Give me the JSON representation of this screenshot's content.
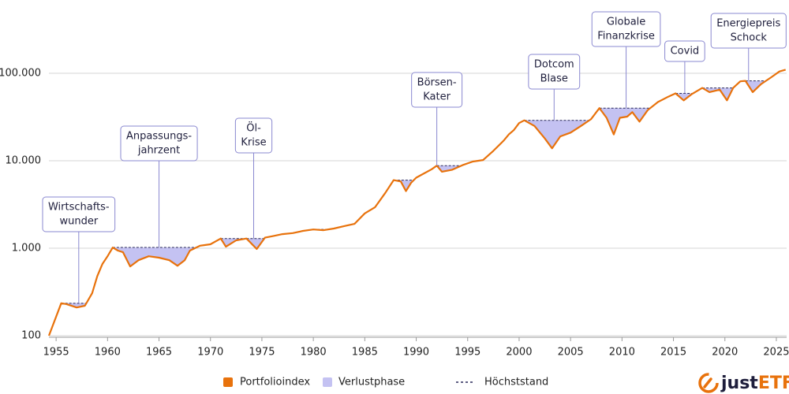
{
  "chart_data": {
    "type": "line",
    "log_scale": true,
    "grid": true,
    "xlim": [
      1954.3,
      2026
    ],
    "ylim": [
      100,
      560000
    ],
    "xticks": [
      1955,
      1960,
      1965,
      1970,
      1975,
      1980,
      1985,
      1990,
      1995,
      2000,
      2005,
      2010,
      2015,
      2020,
      2025
    ],
    "yticks": [
      100,
      {
        "value": 1000,
        "label": "1.000"
      },
      {
        "value": 10000,
        "label": "10.000"
      },
      {
        "value": 100000,
        "label": "100.000"
      }
    ],
    "series": [
      {
        "name": "Portfolioindex",
        "color": "#e8720c",
        "x": [
          1954.3,
          1955.5,
          1956,
          1957,
          1957.8,
          1958.5,
          1959,
          1959.5,
          1960,
          1960.5,
          1961,
          1961.5,
          1962.2,
          1963,
          1964,
          1965,
          1966,
          1966.8,
          1967.5,
          1968,
          1969,
          1970,
          1971,
          1971.5,
          1972.5,
          1973.5,
          1974.5,
          1975.3,
          1976,
          1977,
          1978,
          1979,
          1980,
          1981,
          1982,
          1983,
          1984,
          1985,
          1986,
          1987,
          1987.8,
          1988.5,
          1989,
          1989.5,
          1990,
          1990.5,
          1991.5,
          1992,
          1992.5,
          1993.5,
          1994.5,
          1995.5,
          1996.5,
          1997.5,
          1998.5,
          1999,
          1999.5,
          2000,
          2000.5,
          2001.5,
          2002.5,
          2003.2,
          2004,
          2005,
          2006,
          2007,
          2007.8,
          2008.5,
          2009.2,
          2009.8,
          2010.5,
          2011,
          2011.7,
          2012.5,
          2013.5,
          2014.5,
          2015.2,
          2016,
          2016.8,
          2017.8,
          2018.5,
          2019.5,
          2020.2,
          2020.8,
          2021.5,
          2022,
          2022.7,
          2023.5,
          2024.5,
          2025.3,
          2025.9
        ],
        "values": [
          100,
          235,
          230,
          210,
          220,
          306,
          480,
          660,
          810,
          1020,
          940,
          900,
          620,
          730,
          810,
          780,
          730,
          630,
          730,
          940,
          1070,
          1110,
          1290,
          1040,
          1230,
          1290,
          980,
          1320,
          1370,
          1450,
          1490,
          1580,
          1640,
          1610,
          1680,
          1790,
          1900,
          2500,
          2950,
          4300,
          6000,
          5800,
          4500,
          5600,
          6400,
          6900,
          8000,
          8800,
          7500,
          7900,
          8900,
          9800,
          10200,
          13000,
          17000,
          20000,
          22500,
          27000,
          29000,
          25000,
          18000,
          13900,
          19000,
          21000,
          25000,
          30000,
          40000,
          31000,
          20000,
          31000,
          32000,
          36000,
          28000,
          38000,
          47000,
          54000,
          59000,
          49000,
          58000,
          68000,
          61000,
          65000,
          49000,
          68000,
          81000,
          82000,
          61000,
          75000,
          90000,
          105000,
          110000
        ]
      }
    ],
    "drawdown": {
      "name": "Verlustphase",
      "color": "#c4c2f2"
    },
    "peak": {
      "name": "Höchststand",
      "color": "#2a2a5a"
    },
    "annotations": [
      {
        "lines": [
          "Wirtschafts-",
          "wunder"
        ],
        "x": 1957.2
      },
      {
        "lines": [
          "Anpassungs-",
          "jahrzent"
        ],
        "x": 1965.0
      },
      {
        "lines": [
          "Öl-",
          "Krise"
        ],
        "x": 1974.2
      },
      {
        "lines": [
          "Börsen-",
          "Kater"
        ],
        "x": 1992.0
      },
      {
        "lines": [
          "Dotcom",
          "Blase"
        ],
        "x": 2003.4
      },
      {
        "lines": [
          "Globale",
          "Finanzkrise"
        ],
        "x": 2010.4
      },
      {
        "lines": [
          "Covid"
        ],
        "x": 2016.1
      },
      {
        "lines": [
          "Energiepreis",
          "Schock"
        ],
        "x": 2022.3
      }
    ],
    "logo": {
      "prefix": "just",
      "suffix": "ETF"
    }
  }
}
